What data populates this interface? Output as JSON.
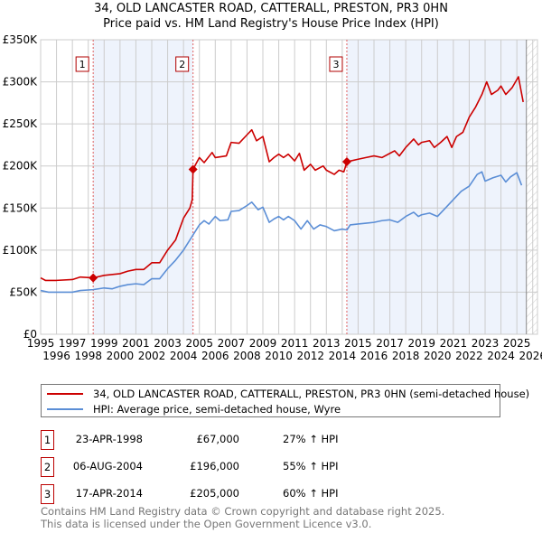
{
  "title_line1": "34, OLD LANCASTER ROAD, CATTERALL, PRESTON, PR3 0HN",
  "title_line2": "Price paid vs. HM Land Registry's House Price Index (HPI)",
  "colors": {
    "property": "#cc0000",
    "hpi": "#5b8ed6",
    "shade": "#eef3fc",
    "marker_border": "#b00000"
  },
  "chart_data": {
    "type": "line",
    "title": "Price paid vs. HM Land Registry's House Price Index (HPI)",
    "xlabel": "",
    "ylabel": "",
    "xlim": [
      1995,
      2026.3
    ],
    "ylim": [
      0,
      350000
    ],
    "grid": true,
    "ytick_labels": [
      "£0",
      "£50K",
      "£100K",
      "£150K",
      "£200K",
      "£250K",
      "£300K",
      "£350K"
    ],
    "yticks": [
      0,
      50000,
      100000,
      150000,
      200000,
      250000,
      300000,
      350000
    ],
    "xticks": [
      1995,
      1996,
      1997,
      1998,
      1999,
      2000,
      2001,
      2002,
      2003,
      2004,
      2005,
      2006,
      2007,
      2008,
      2009,
      2010,
      2011,
      2012,
      2013,
      2014,
      2015,
      2016,
      2017,
      2018,
      2019,
      2020,
      2021,
      2022,
      2023,
      2024,
      2025,
      2026
    ],
    "legend_placement": "below",
    "series": [
      {
        "name": "34, OLD LANCASTER ROAD, CATTERALL, PRESTON, PR3 0HN (semi-detached house)",
        "points": [
          [
            1995,
            67
          ],
          [
            1995.3,
            64
          ],
          [
            1996,
            64
          ],
          [
            1997,
            65
          ],
          [
            1997.5,
            68
          ],
          [
            1998.3,
            67
          ],
          [
            1999,
            70
          ],
          [
            2000,
            72
          ],
          [
            2000.5,
            75
          ],
          [
            2001,
            77
          ],
          [
            2001.5,
            77
          ],
          [
            2002,
            85
          ],
          [
            2002.5,
            85
          ],
          [
            2003,
            100
          ],
          [
            2003.5,
            112
          ],
          [
            2004,
            138
          ],
          [
            2004.4,
            150
          ],
          [
            2004.55,
            160
          ],
          [
            2004.6,
            196
          ],
          [
            2005,
            210
          ],
          [
            2005.3,
            204
          ],
          [
            2005.8,
            216
          ],
          [
            2006,
            210
          ],
          [
            2006.7,
            212
          ],
          [
            2007,
            228
          ],
          [
            2007.5,
            227
          ],
          [
            2008,
            237
          ],
          [
            2008.3,
            243
          ],
          [
            2008.6,
            230
          ],
          [
            2009,
            235
          ],
          [
            2009.4,
            205
          ],
          [
            2009.7,
            210
          ],
          [
            2010,
            214
          ],
          [
            2010.3,
            210
          ],
          [
            2010.6,
            214
          ],
          [
            2011,
            206
          ],
          [
            2011.3,
            215
          ],
          [
            2011.6,
            195
          ],
          [
            2012,
            202
          ],
          [
            2012.3,
            195
          ],
          [
            2012.8,
            200
          ],
          [
            2013,
            195
          ],
          [
            2013.5,
            190
          ],
          [
            2013.8,
            195
          ],
          [
            2014.1,
            193
          ],
          [
            2014.3,
            205
          ],
          [
            2015,
            208
          ],
          [
            2015.5,
            210
          ],
          [
            2016,
            212
          ],
          [
            2016.5,
            210
          ],
          [
            2017,
            215
          ],
          [
            2017.3,
            218
          ],
          [
            2017.6,
            212
          ],
          [
            2018,
            222
          ],
          [
            2018.5,
            232
          ],
          [
            2018.8,
            225
          ],
          [
            2019,
            228
          ],
          [
            2019.5,
            230
          ],
          [
            2019.8,
            222
          ],
          [
            2020.2,
            228
          ],
          [
            2020.6,
            235
          ],
          [
            2020.9,
            222
          ],
          [
            2021.2,
            235
          ],
          [
            2021.6,
            240
          ],
          [
            2022,
            258
          ],
          [
            2022.4,
            270
          ],
          [
            2022.8,
            285
          ],
          [
            2023.1,
            300
          ],
          [
            2023.4,
            285
          ],
          [
            2023.8,
            290
          ],
          [
            2024,
            295
          ],
          [
            2024.3,
            285
          ],
          [
            2024.7,
            293
          ],
          [
            2025.1,
            306
          ],
          [
            2025.4,
            276
          ]
        ]
      },
      {
        "name": "HPI: Average price, semi-detached house, Wyre",
        "points": [
          [
            1995,
            52
          ],
          [
            1995.5,
            50
          ],
          [
            1996.5,
            50
          ],
          [
            1997,
            50
          ],
          [
            1997.5,
            52
          ],
          [
            1998.3,
            53
          ],
          [
            1999,
            55
          ],
          [
            1999.5,
            54
          ],
          [
            2000,
            57
          ],
          [
            2000.5,
            59
          ],
          [
            2001,
            60
          ],
          [
            2001.5,
            59
          ],
          [
            2002,
            66
          ],
          [
            2002.5,
            66
          ],
          [
            2003,
            78
          ],
          [
            2003.5,
            88
          ],
          [
            2004,
            100
          ],
          [
            2004.5,
            115
          ],
          [
            2005,
            130
          ],
          [
            2005.3,
            135
          ],
          [
            2005.6,
            131
          ],
          [
            2006,
            140
          ],
          [
            2006.3,
            135
          ],
          [
            2006.8,
            136
          ],
          [
            2007,
            146
          ],
          [
            2007.5,
            147
          ],
          [
            2008,
            153
          ],
          [
            2008.3,
            157
          ],
          [
            2008.7,
            148
          ],
          [
            2009,
            151
          ],
          [
            2009.4,
            133
          ],
          [
            2009.7,
            137
          ],
          [
            2010,
            140
          ],
          [
            2010.3,
            136
          ],
          [
            2010.6,
            140
          ],
          [
            2011,
            135
          ],
          [
            2011.4,
            125
          ],
          [
            2011.8,
            135
          ],
          [
            2012.2,
            125
          ],
          [
            2012.6,
            130
          ],
          [
            2013,
            128
          ],
          [
            2013.5,
            123
          ],
          [
            2014,
            125
          ],
          [
            2014.3,
            124
          ],
          [
            2014.5,
            130
          ],
          [
            2015,
            131
          ],
          [
            2015.5,
            132
          ],
          [
            2016,
            133
          ],
          [
            2016.5,
            135
          ],
          [
            2017,
            136
          ],
          [
            2017.5,
            133
          ],
          [
            2018,
            140
          ],
          [
            2018.5,
            145
          ],
          [
            2018.8,
            140
          ],
          [
            2019,
            142
          ],
          [
            2019.5,
            144
          ],
          [
            2020,
            140
          ],
          [
            2020.5,
            150
          ],
          [
            2021,
            160
          ],
          [
            2021.5,
            170
          ],
          [
            2022,
            176
          ],
          [
            2022.5,
            190
          ],
          [
            2022.8,
            193
          ],
          [
            2023,
            182
          ],
          [
            2023.5,
            186
          ],
          [
            2024,
            189
          ],
          [
            2024.3,
            181
          ],
          [
            2024.6,
            187
          ],
          [
            2025,
            192
          ],
          [
            2025.3,
            177
          ]
        ]
      }
    ],
    "point_units": "thousand GBP",
    "sales": [
      {
        "label": "1",
        "x": 1998.31,
        "value": 67
      },
      {
        "label": "2",
        "x": 2004.6,
        "value": 196
      },
      {
        "label": "3",
        "x": 2014.29,
        "value": 205
      }
    ],
    "shaded_ranges": [
      [
        1998.31,
        2004.6
      ],
      [
        2014.29,
        2026.3
      ]
    ],
    "hatched_from": 2025.6
  },
  "legend": {
    "property": "34, OLD LANCASTER ROAD, CATTERALL, PRESTON, PR3 0HN (semi-detached house)",
    "hpi": "HPI: Average price, semi-detached house, Wyre"
  },
  "transactions": [
    {
      "num": "1",
      "date": "23-APR-1998",
      "price": "£67,000",
      "pct": "27% ↑ HPI"
    },
    {
      "num": "2",
      "date": "06-AUG-2004",
      "price": "£196,000",
      "pct": "55% ↑ HPI"
    },
    {
      "num": "3",
      "date": "17-APR-2014",
      "price": "£205,000",
      "pct": "60% ↑ HPI"
    }
  ],
  "footer": {
    "line1": "Contains HM Land Registry data © Crown copyright and database right 2025.",
    "line2": "This data is licensed under the Open Government Licence v3.0."
  }
}
